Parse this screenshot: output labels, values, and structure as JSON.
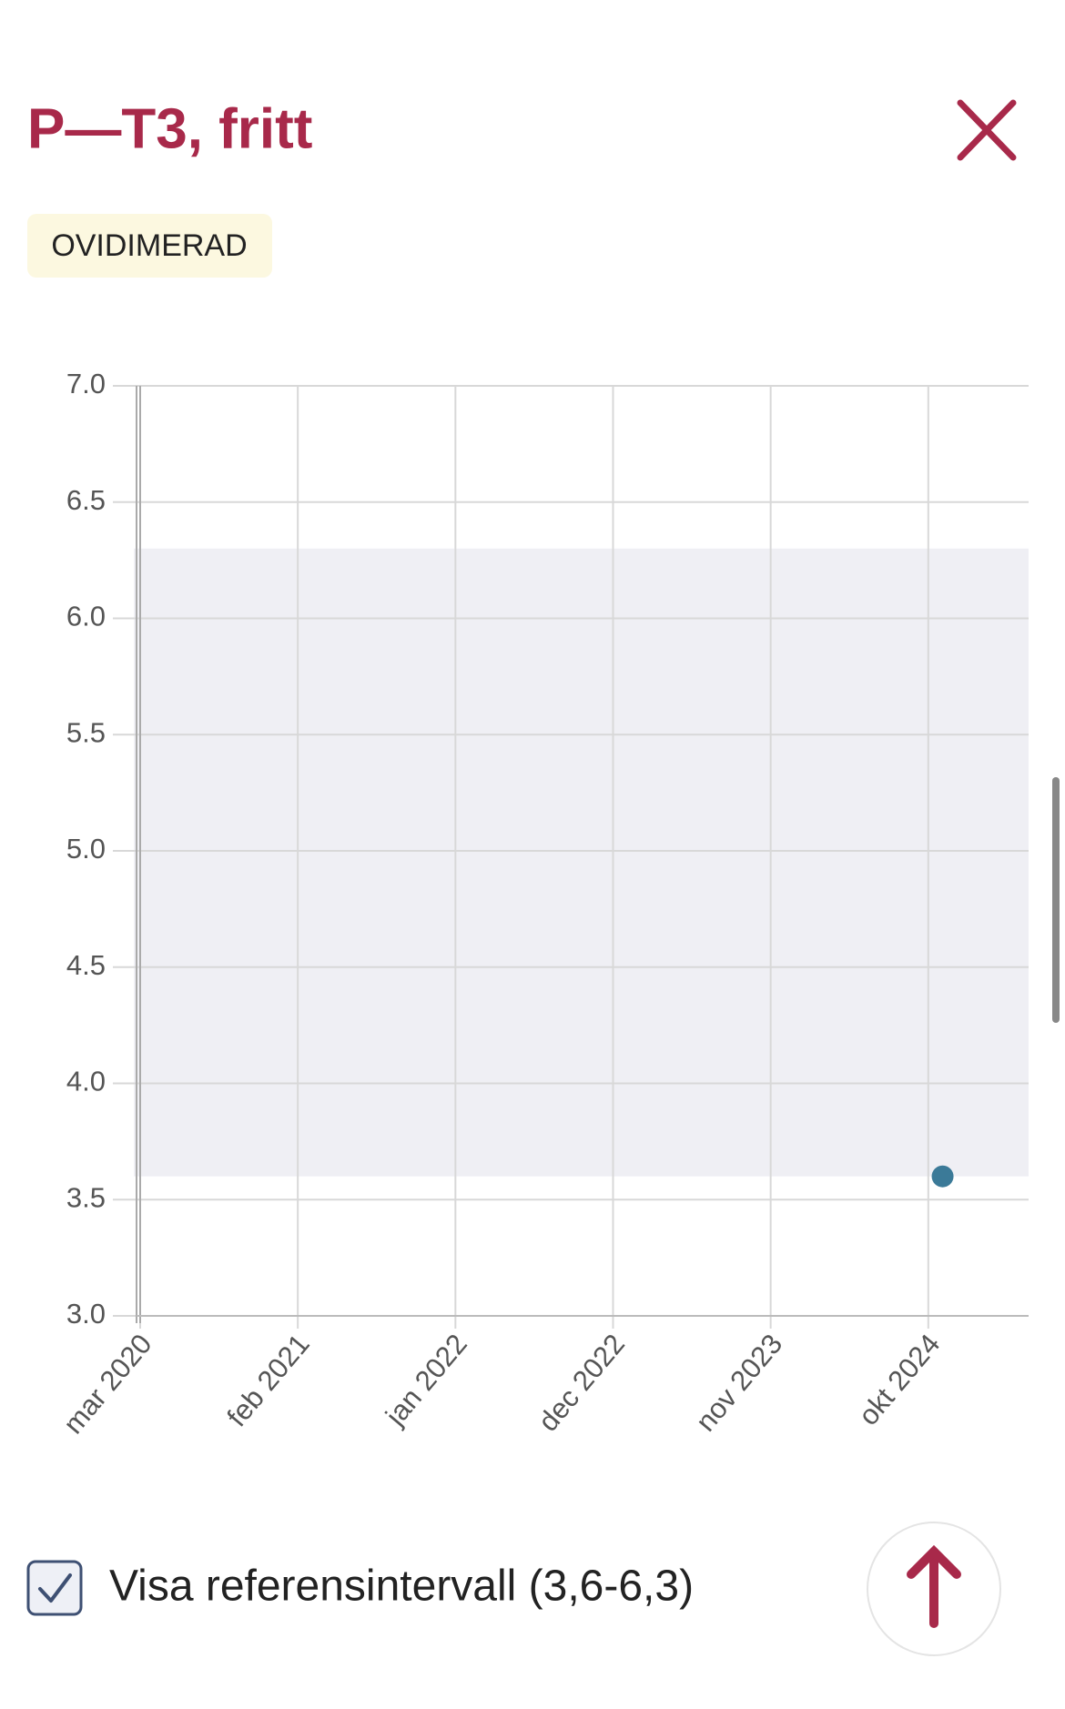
{
  "header": {
    "title": "P—T3, fritt",
    "badge": "OVIDIMERAD"
  },
  "chart_data": {
    "type": "scatter",
    "x": [
      "2024-11"
    ],
    "values": [
      3.6
    ],
    "color": "#3b7a98",
    "xlim": [
      "2020-03",
      "2025-05"
    ],
    "xticks": [
      {
        "value": "2020-03",
        "label": "mar 2020"
      },
      {
        "value": "2021-02",
        "label": "feb 2021"
      },
      {
        "value": "2022-01",
        "label": "jan 2022"
      },
      {
        "value": "2022-12",
        "label": "dec 2022"
      },
      {
        "value": "2023-11",
        "label": "nov 2023"
      },
      {
        "value": "2024-10",
        "label": "okt 2024"
      }
    ],
    "ylim": [
      3,
      7
    ],
    "yticks": [
      {
        "value": 3,
        "label": "3.0"
      },
      {
        "value": 3.5,
        "label": "3.5"
      },
      {
        "value": 4,
        "label": "4.0"
      },
      {
        "value": 4.5,
        "label": "4.5"
      },
      {
        "value": 5,
        "label": "5.0"
      },
      {
        "value": 5.5,
        "label": "5.5"
      },
      {
        "value": 6,
        "label": "6.0"
      },
      {
        "value": 6.5,
        "label": "6.5"
      },
      {
        "value": 7,
        "label": "7.0"
      }
    ],
    "reference_range": [
      3.6,
      6.3
    ],
    "grid": true
  },
  "controls": {
    "reference_toggle": {
      "label": "Visa referensintervall (3,6-6,3)",
      "checked": true
    }
  }
}
